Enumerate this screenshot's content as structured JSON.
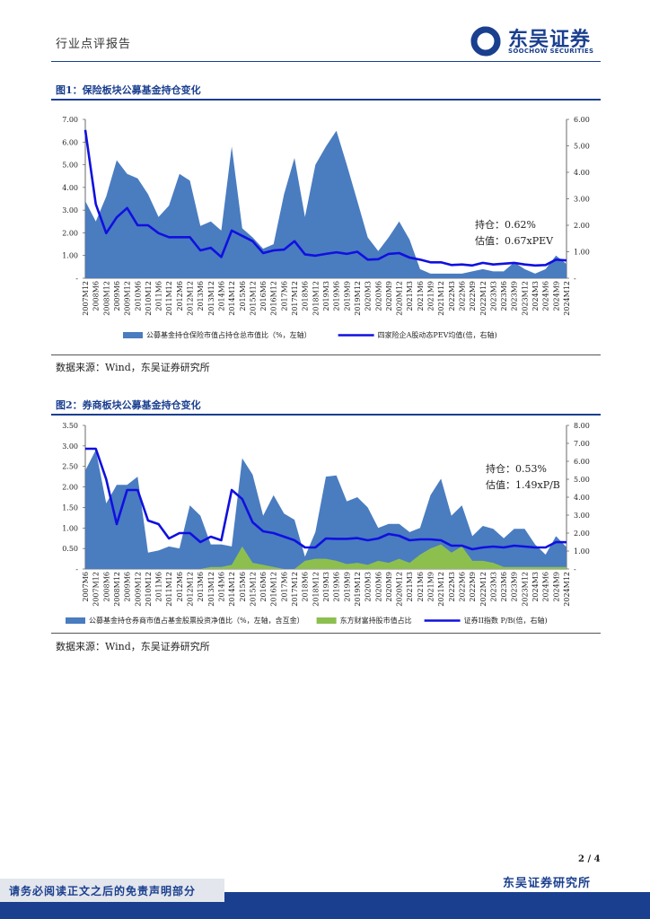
{
  "header": {
    "report_type": "行业点评报告",
    "logo_cn": "东吴证券",
    "logo_en": "SOOCHOW SECURITIES"
  },
  "fig1": {
    "title": "图1：保险板块公募基金持仓变化",
    "source": "数据来源：Wind，东吴证券研究所",
    "annot1": "持仓：0.62%",
    "annot2": "估值：0.67xPEV",
    "legend_area": "公募基金持仓保险市值占持仓总市值比（%，左轴）",
    "legend_line": "四家险企A股动态PEV均值(倍，右轴)"
  },
  "fig2": {
    "title": "图2：券商板块公募基金持仓变化",
    "source": "数据来源：Wind，东吴证券研究所",
    "annot1": "持仓：0.53%",
    "annot2": "估值：1.49xP/B",
    "legend_area": "公募基金持仓券商市值占基金股票投资净值比（%，左轴，含互金）",
    "legend_green": "东方财富持股市值占比",
    "legend_line": "证券II指数 P/B(倍，右轴)"
  },
  "chart_data": [
    {
      "type": "area",
      "title": "图1：保险板块公募基金持仓变化",
      "y_left_ticks": [
        "-",
        "1.00",
        "2.00",
        "3.00",
        "4.00",
        "5.00",
        "6.00",
        "7.00"
      ],
      "y_right_ticks": [
        "-",
        "1.00",
        "2.00",
        "3.00",
        "4.00",
        "5.00",
        "6.00"
      ],
      "ylim_left": [
        0,
        7
      ],
      "ylim_right": [
        0,
        6
      ],
      "x_tick_labels": [
        "2007M12",
        "2008M6",
        "2008M12",
        "2009M6",
        "2009M12",
        "2010M6",
        "2010M12",
        "2011M6",
        "2011M12",
        "2012M6",
        "2012M12",
        "2013M6",
        "2013M12",
        "2014M6",
        "2014M12",
        "2015M6",
        "2015M12",
        "2016M6",
        "2016M12",
        "2017M6",
        "2017M12",
        "2018M6",
        "2018M12",
        "2019M3",
        "2019M6",
        "2019M9",
        "2019M12",
        "2020M3",
        "2020M6",
        "2020M9",
        "2020M12",
        "2021M3",
        "2021M6",
        "2021M9",
        "2021M12",
        "2022M3",
        "2022M6",
        "2022M9",
        "2022M12",
        "2023M3",
        "2023M6",
        "2023M9",
        "2023M12",
        "2024M3",
        "2024M6",
        "2024M9",
        "2024M12"
      ],
      "series": [
        {
          "name": "公募基金持仓保险市值占持仓总市值比（%，左轴）",
          "axis": "left",
          "kind": "area",
          "color": "#4a7cc0",
          "values": [
            3.4,
            2.5,
            3.6,
            5.2,
            4.6,
            4.4,
            3.7,
            2.7,
            3.2,
            4.6,
            4.3,
            2.3,
            2.5,
            2.1,
            5.8,
            2.2,
            1.8,
            1.3,
            1.5,
            3.7,
            5.3,
            2.7,
            5.0,
            5.8,
            6.5,
            5.0,
            3.4,
            1.8,
            1.2,
            1.8,
            2.5,
            1.7,
            0.4,
            0.2,
            0.2,
            0.2,
            0.2,
            0.3,
            0.4,
            0.3,
            0.3,
            0.7,
            0.4,
            0.2,
            0.4,
            1.0,
            0.62
          ]
        },
        {
          "name": "四家险企A股动态PEV均值(倍，右轴)",
          "axis": "right",
          "kind": "line",
          "color": "#1010e0",
          "values": [
            5.6,
            2.8,
            1.7,
            2.3,
            2.65,
            2.0,
            2.0,
            1.7,
            1.55,
            1.55,
            1.55,
            1.05,
            1.15,
            0.8,
            1.8,
            1.6,
            1.4,
            0.95,
            1.05,
            1.08,
            1.4,
            0.9,
            0.85,
            0.92,
            0.98,
            0.92,
            1.0,
            0.7,
            0.72,
            0.92,
            0.95,
            0.78,
            0.7,
            0.6,
            0.6,
            0.5,
            0.52,
            0.48,
            0.58,
            0.52,
            0.55,
            0.58,
            0.52,
            0.48,
            0.5,
            0.7,
            0.67
          ]
        }
      ]
    },
    {
      "type": "area",
      "title": "图2：券商板块公募基金持仓变化",
      "y_left_ticks": [
        "-",
        "0.50",
        "1.00",
        "1.50",
        "2.00",
        "2.50",
        "3.00",
        "3.50"
      ],
      "y_right_ticks": [
        "-",
        "1.00",
        "2.00",
        "3.00",
        "4.00",
        "5.00",
        "6.00",
        "7.00",
        "8.00"
      ],
      "ylim_left": [
        0,
        3.5
      ],
      "ylim_right": [
        0,
        8
      ],
      "x_tick_labels": [
        "2007M6",
        "2007M12",
        "2008M6",
        "2008M12",
        "2009M6",
        "2009M12",
        "2010M12",
        "2011M6",
        "2011M12",
        "2012M6",
        "2012M12",
        "2013M6",
        "2013M12",
        "2014M6",
        "2014M12",
        "2015M6",
        "2015M12",
        "2016M6",
        "2016M12",
        "2017M6",
        "2017M12",
        "2018M6",
        "2018M12",
        "2019M3",
        "2019M6",
        "2019M9",
        "2019M12",
        "2020M3",
        "2020M6",
        "2020M9",
        "2020M12",
        "2021M3",
        "2021M6",
        "2021M9",
        "2021M12",
        "2022M3",
        "2022M6",
        "2022M9",
        "2022M12",
        "2023M3",
        "2023M6",
        "2023M9",
        "2023M12",
        "2024M3",
        "2024M6",
        "2024M9",
        "2024M12"
      ],
      "series": [
        {
          "name": "公募基金持仓券商市值占基金股票投资净值比（%，左轴，含互金）",
          "axis": "left",
          "kind": "area",
          "color": "#4a7cc0",
          "values": [
            2.4,
            2.9,
            1.6,
            2.05,
            2.05,
            2.25,
            0.4,
            0.45,
            0.55,
            0.5,
            1.55,
            1.3,
            0.6,
            0.6,
            0.55,
            2.7,
            2.3,
            1.3,
            1.8,
            1.35,
            1.2,
            0.3,
            0.9,
            2.25,
            2.28,
            1.65,
            1.75,
            1.5,
            1.0,
            1.1,
            1.1,
            0.9,
            1.0,
            1.8,
            2.2,
            1.3,
            1.55,
            0.8,
            1.05,
            0.98,
            0.75,
            0.98,
            0.98,
            0.6,
            0.35,
            0.8,
            0.53
          ]
        },
        {
          "name": "东方财富持股市值占比",
          "axis": "left",
          "kind": "area",
          "color": "#8dbf4f",
          "values": [
            0,
            0,
            0,
            0,
            0,
            0,
            0,
            0,
            0,
            0,
            0,
            0,
            0.05,
            0.05,
            0.1,
            0.55,
            0.15,
            0.1,
            0.05,
            0,
            0,
            0.2,
            0.25,
            0.25,
            0.2,
            0.12,
            0.15,
            0.1,
            0.2,
            0.15,
            0.25,
            0.15,
            0.35,
            0.5,
            0.6,
            0.4,
            0.55,
            0.2,
            0.2,
            0.15,
            0.05,
            0.05,
            0.05,
            0.05,
            0.05,
            0.05,
            0.05
          ]
        },
        {
          "name": "证券II指数 P/B(倍，右轴)",
          "axis": "right",
          "kind": "line",
          "color": "#1010e0",
          "values": [
            6.7,
            6.7,
            5.0,
            2.5,
            4.4,
            4.4,
            2.7,
            2.5,
            1.7,
            2.0,
            2.0,
            1.5,
            1.8,
            1.6,
            4.4,
            3.9,
            2.6,
            2.1,
            2.0,
            1.8,
            1.6,
            1.2,
            1.2,
            1.7,
            1.68,
            1.68,
            1.72,
            1.6,
            1.7,
            1.95,
            1.85,
            1.6,
            1.65,
            1.65,
            1.6,
            1.3,
            1.3,
            1.1,
            1.2,
            1.25,
            1.2,
            1.3,
            1.25,
            1.2,
            1.2,
            1.5,
            1.49
          ]
        }
      ]
    }
  ],
  "footer": {
    "page_no": "2 / 4",
    "org": "东吴证券研究所",
    "disclaimer": "请务必阅读正文之后的免责声明部分"
  }
}
